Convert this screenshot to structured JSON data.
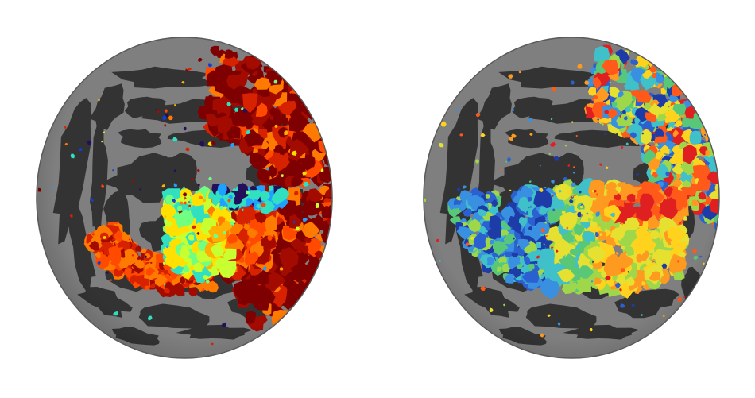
{
  "figure": {
    "panels": [
      {
        "id": "left",
        "description_name": "cortical-sphere-left",
        "colormap": "jet",
        "palette": [
          "#7f0000",
          "#a30a00",
          "#d62200",
          "#ff4a00",
          "#ff7a00",
          "#ffb000",
          "#ffe000",
          "#c8ff30",
          "#70ff80",
          "#30e0c0",
          "#20a0ff",
          "#1040d0",
          "#24105a"
        ]
      },
      {
        "id": "right",
        "description_name": "cortical-sphere-right",
        "colormap": "jet",
        "palette": [
          "#e02020",
          "#ff5a1a",
          "#ff9a20",
          "#ffd21e",
          "#e6e030",
          "#9ed84a",
          "#58c878",
          "#40c0c8",
          "#3a90e0",
          "#2a60d0",
          "#1e3ca8"
        ]
      }
    ],
    "colors": {
      "background": "#ffffff",
      "gyri": "#7f7f7f",
      "sulci": "#333333",
      "rim": "#5a5a5a"
    }
  }
}
